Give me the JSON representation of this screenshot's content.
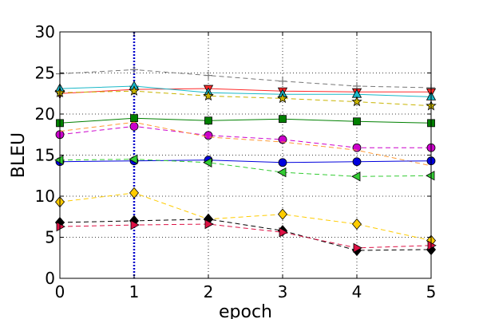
{
  "chart_data": {
    "type": "line",
    "title": "",
    "xlabel": "epoch",
    "ylabel": "BLEU",
    "xlim": [
      0,
      5
    ],
    "ylim": [
      0,
      30
    ],
    "xticks": [
      0,
      1,
      2,
      3,
      4,
      5
    ],
    "yticks": [
      0,
      5,
      10,
      15,
      20,
      25,
      30
    ],
    "grid": true,
    "legend": "none",
    "vline": {
      "x": 1,
      "color": "#0000cc"
    },
    "x": [
      0,
      1,
      2,
      3,
      4,
      5
    ],
    "series": [
      {
        "color": "#777777",
        "dash": "dashed",
        "marker": "plus",
        "values": [
          24.9,
          25.4,
          24.7,
          24.0,
          23.4,
          23.2
        ]
      },
      {
        "color": "#ff2a2a",
        "dash": "solid",
        "marker": "tri-down",
        "values": [
          22.5,
          23.0,
          23.1,
          22.8,
          22.7,
          22.7
        ]
      },
      {
        "color": "#1ab8c8",
        "dash": "solid",
        "marker": "tri-up",
        "values": [
          23.1,
          23.4,
          22.6,
          22.4,
          22.4,
          22.1
        ]
      },
      {
        "color": "#c8b400",
        "dash": "dashed",
        "marker": "star",
        "values": [
          22.6,
          22.8,
          22.2,
          21.9,
          21.5,
          21.0
        ]
      },
      {
        "color": "#008000",
        "dash": "solid",
        "marker": "square",
        "values": [
          18.9,
          19.5,
          19.2,
          19.4,
          19.1,
          18.9
        ]
      },
      {
        "color": "#cc00cc",
        "dash": "dashed",
        "marker": "circle",
        "values": [
          17.5,
          18.5,
          17.4,
          16.9,
          15.9,
          15.9
        ]
      },
      {
        "color": "#ff9933",
        "dash": "dashed",
        "marker": "none",
        "values": [
          17.9,
          19.0,
          17.2,
          16.6,
          15.6,
          13.7
        ]
      },
      {
        "color": "#0000dd",
        "dash": "solid",
        "marker": "circle",
        "values": [
          14.2,
          14.3,
          14.4,
          14.1,
          14.2,
          14.3
        ]
      },
      {
        "color": "#33cc33",
        "dash": "dashed",
        "marker": "tri-left",
        "values": [
          14.4,
          14.5,
          14.1,
          12.9,
          12.4,
          12.5
        ]
      },
      {
        "color": "#ffcc00",
        "dash": "dashed",
        "marker": "diamond",
        "values": [
          9.3,
          10.4,
          7.2,
          7.8,
          6.6,
          4.6
        ]
      },
      {
        "color": "#000000",
        "dash": "dashed",
        "marker": "diamond",
        "values": [
          6.8,
          7.0,
          7.2,
          5.8,
          3.4,
          3.5
        ]
      },
      {
        "color": "#dd1144",
        "dash": "dashed",
        "marker": "tri-right",
        "values": [
          6.3,
          6.5,
          6.6,
          5.6,
          3.7,
          4.0
        ]
      }
    ]
  }
}
